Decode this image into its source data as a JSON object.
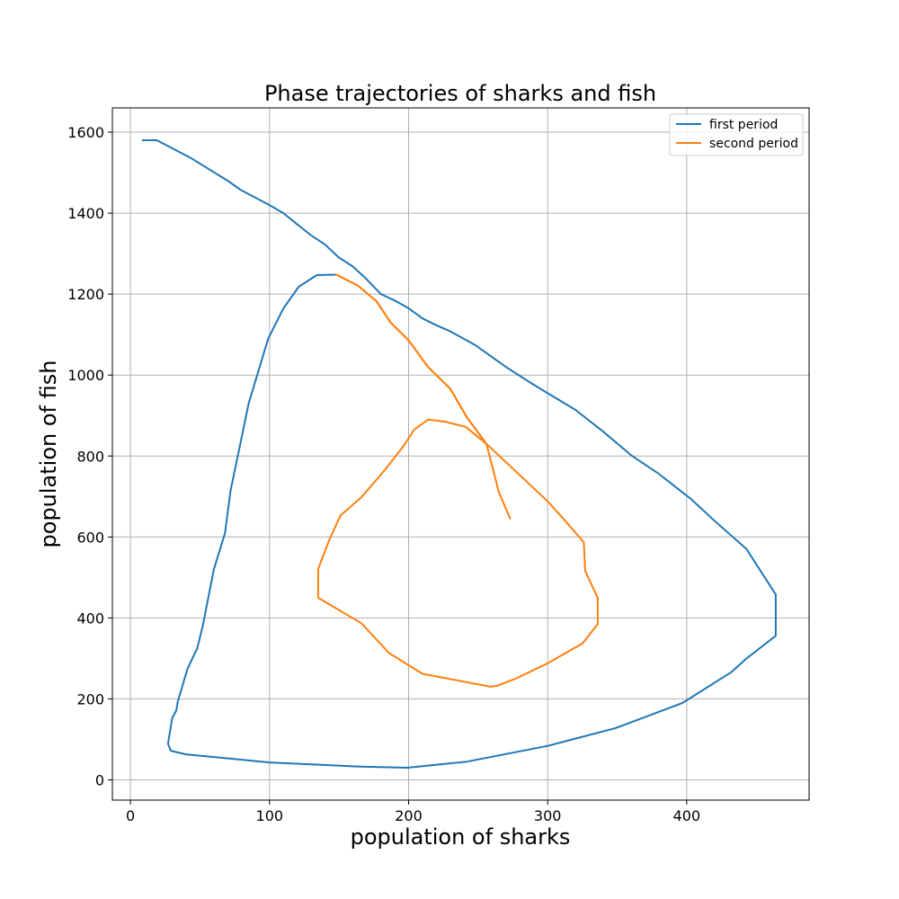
{
  "chart_data": {
    "type": "line",
    "title": "Phase trajectories of sharks and fish",
    "xlabel": "population of sharks",
    "ylabel": "population of fish",
    "xlim": [
      -13,
      488
    ],
    "ylim": [
      -50,
      1660
    ],
    "xticks": [
      0,
      100,
      200,
      300,
      400
    ],
    "yticks": [
      0,
      200,
      400,
      600,
      800,
      1000,
      1200,
      1400,
      1600
    ],
    "grid": true,
    "legend_position": "top-right",
    "series": [
      {
        "name": "first period",
        "color": "#1f77b4",
        "points": [
          [
            9,
            1580
          ],
          [
            19,
            1580
          ],
          [
            44,
            1535
          ],
          [
            70,
            1480
          ],
          [
            79,
            1458
          ],
          [
            90,
            1438
          ],
          [
            100,
            1420
          ],
          [
            110,
            1400
          ],
          [
            120,
            1372
          ],
          [
            130,
            1345
          ],
          [
            140,
            1322
          ],
          [
            150,
            1290
          ],
          [
            160,
            1268
          ],
          [
            170,
            1236
          ],
          [
            180,
            1200
          ],
          [
            190,
            1184
          ],
          [
            200,
            1165
          ],
          [
            210,
            1140
          ],
          [
            220,
            1123
          ],
          [
            230,
            1108
          ],
          [
            248,
            1074
          ],
          [
            270,
            1020
          ],
          [
            290,
            976
          ],
          [
            320,
            914
          ],
          [
            340,
            860
          ],
          [
            360,
            802
          ],
          [
            380,
            756
          ],
          [
            403,
            694
          ],
          [
            420,
            640
          ],
          [
            443,
            570
          ],
          [
            464,
            458
          ],
          [
            464,
            356
          ],
          [
            443,
            300
          ],
          [
            432,
            266
          ],
          [
            397,
            190
          ],
          [
            349,
            128
          ],
          [
            300,
            84
          ],
          [
            242,
            45
          ],
          [
            199,
            30
          ],
          [
            163,
            33
          ],
          [
            100,
            43
          ],
          [
            40,
            63
          ],
          [
            29,
            72
          ],
          [
            27,
            89
          ],
          [
            28,
            110
          ],
          [
            29,
            132
          ],
          [
            30,
            152
          ],
          [
            33,
            172
          ],
          [
            34,
            193
          ],
          [
            41,
            274
          ],
          [
            48,
            325
          ],
          [
            52,
            380
          ],
          [
            60,
            520
          ],
          [
            68,
            610
          ],
          [
            72,
            715
          ],
          [
            79,
            830
          ],
          [
            85,
            930
          ],
          [
            99,
            1090
          ],
          [
            110,
            1165
          ],
          [
            121,
            1218
          ],
          [
            134,
            1247
          ],
          [
            148,
            1248
          ]
        ]
      },
      {
        "name": "second period",
        "color": "#ff7f0e",
        "points": [
          [
            148,
            1248
          ],
          [
            164,
            1220
          ],
          [
            177,
            1182
          ],
          [
            187,
            1130
          ],
          [
            200,
            1086
          ],
          [
            214,
            1020
          ],
          [
            230,
            966
          ],
          [
            242,
            895
          ],
          [
            256,
            830
          ],
          [
            265,
            710
          ],
          [
            273,
            646
          ]
        ]
      },
      {
        "name": "",
        "color": "#ff7f0e",
        "points": [
          [
            148,
            1248
          ],
          [
            164,
            1220
          ],
          [
            177,
            1182
          ],
          [
            187,
            1130
          ],
          [
            200,
            1086
          ],
          [
            214,
            1020
          ],
          [
            230,
            966
          ],
          [
            242,
            895
          ],
          [
            256,
            830
          ],
          [
            300,
            688
          ],
          [
            310,
            650
          ],
          [
            326,
            587
          ],
          [
            327,
            516
          ],
          [
            336,
            450
          ],
          [
            336,
            385
          ],
          [
            325,
            337
          ],
          [
            300,
            288
          ],
          [
            277,
            250
          ],
          [
            264,
            233
          ],
          [
            259,
            230
          ],
          [
            210,
            262
          ],
          [
            186,
            313
          ],
          [
            166,
            387
          ],
          [
            135,
            450
          ],
          [
            135,
            521
          ],
          [
            143,
            593
          ],
          [
            151,
            653
          ],
          [
            166,
            698
          ],
          [
            183,
            766
          ],
          [
            196,
            823
          ],
          [
            204,
            865
          ],
          [
            214,
            890
          ],
          [
            226,
            885
          ],
          [
            241,
            872
          ],
          [
            256,
            830
          ]
        ]
      }
    ]
  }
}
